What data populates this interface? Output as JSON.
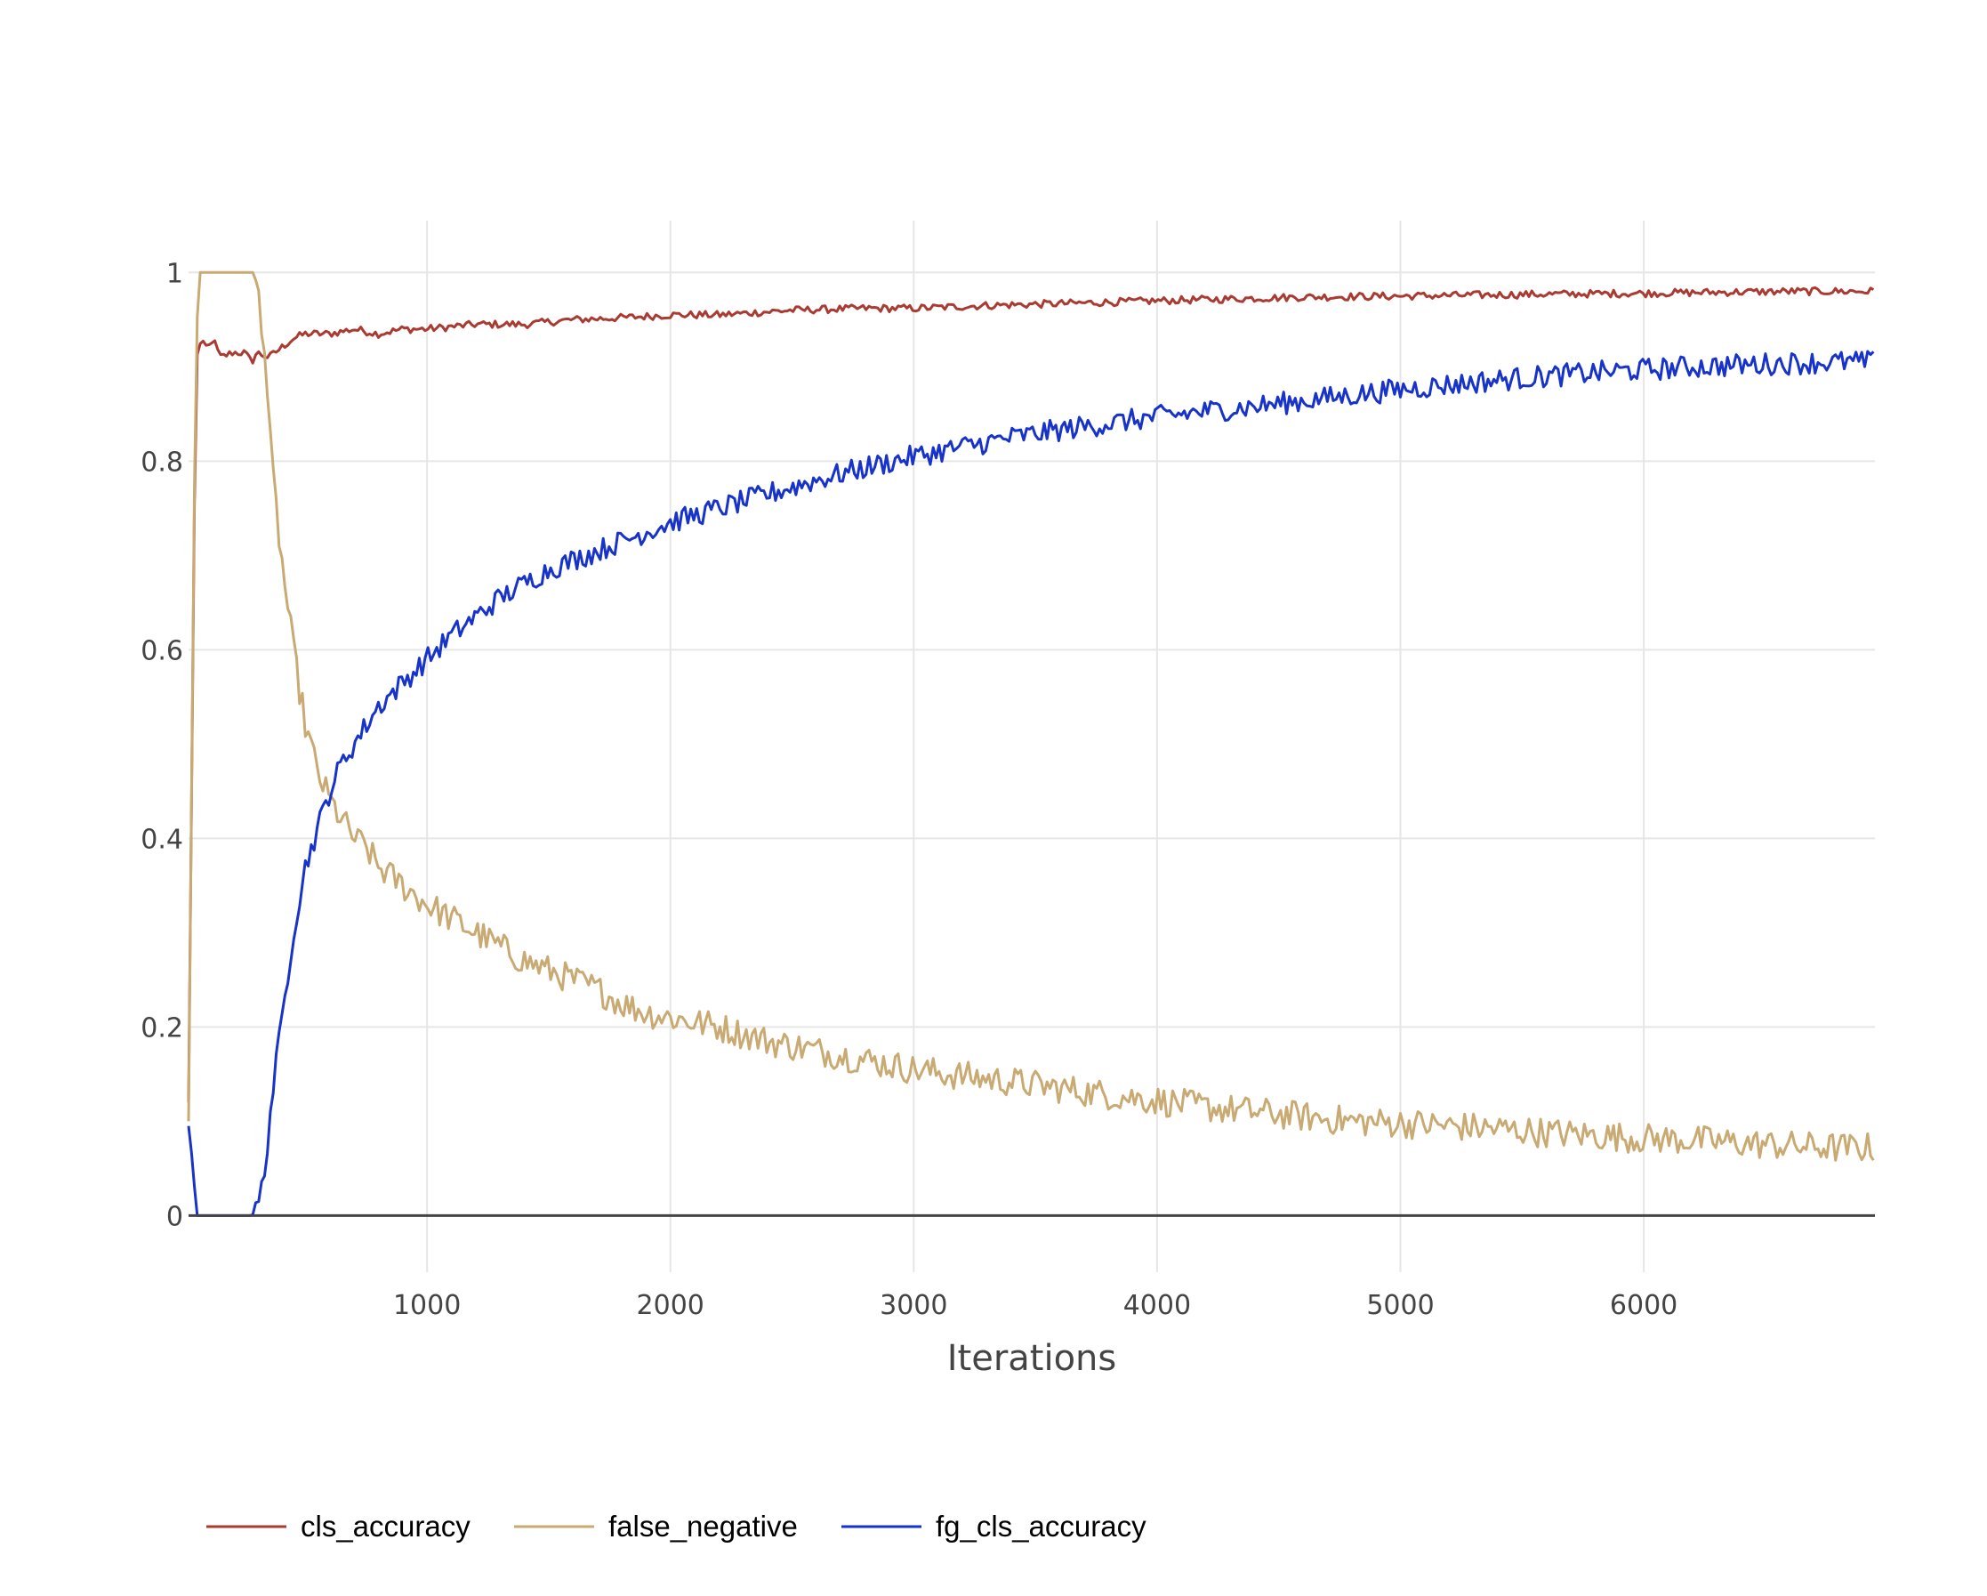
{
  "chart_data": {
    "type": "line",
    "title": "",
    "xlabel": "Iterations",
    "ylabel": "",
    "xlim": [
      20,
      6950
    ],
    "ylim": [
      -0.06,
      1.055
    ],
    "xticks": [
      1000,
      2000,
      3000,
      4000,
      5000,
      6000
    ],
    "xtick_labels": [
      "1000",
      "2000",
      "3000",
      "4000",
      "5000",
      "6000"
    ],
    "yticks": [
      0,
      0.2,
      0.4,
      0.6,
      0.8,
      1
    ],
    "ytick_labels": [
      "0",
      "0.2",
      "0.4",
      "0.6",
      "0.8",
      "1"
    ],
    "grid": true,
    "legend_position": "bottom-left",
    "series": [
      {
        "name": "cls_accuracy",
        "color": "#a93b32",
        "points": [
          [
            20,
            0.12
          ],
          [
            50,
            0.91
          ],
          [
            70,
            0.925
          ],
          [
            100,
            0.92
          ],
          [
            120,
            0.93
          ],
          [
            150,
            0.91
          ],
          [
            200,
            0.915
          ],
          [
            250,
            0.915
          ],
          [
            280,
            0.905
          ],
          [
            300,
            0.915
          ],
          [
            350,
            0.91
          ],
          [
            400,
            0.92
          ],
          [
            450,
            0.93
          ],
          [
            500,
            0.935
          ],
          [
            600,
            0.935
          ],
          [
            700,
            0.94
          ],
          [
            800,
            0.935
          ],
          [
            900,
            0.94
          ],
          [
            1000,
            0.94
          ],
          [
            1200,
            0.945
          ],
          [
            1400,
            0.945
          ],
          [
            1600,
            0.95
          ],
          [
            1800,
            0.952
          ],
          [
            2000,
            0.955
          ],
          [
            2200,
            0.955
          ],
          [
            2500,
            0.96
          ],
          [
            2800,
            0.962
          ],
          [
            3000,
            0.962
          ],
          [
            3300,
            0.965
          ],
          [
            3600,
            0.967
          ],
          [
            4000,
            0.97
          ],
          [
            4300,
            0.972
          ],
          [
            4600,
            0.974
          ],
          [
            5000,
            0.975
          ],
          [
            5300,
            0.976
          ],
          [
            5600,
            0.977
          ],
          [
            6000,
            0.978
          ],
          [
            6300,
            0.979
          ],
          [
            6600,
            0.98
          ],
          [
            6950,
            0.98
          ]
        ],
        "noise": 0.004
      },
      {
        "name": "false_negative",
        "color": "#c8aa72",
        "points": [
          [
            20,
            0.1
          ],
          [
            50,
            0.95
          ],
          [
            70,
            1.0
          ],
          [
            100,
            1.0
          ],
          [
            150,
            1.0
          ],
          [
            200,
            1.0
          ],
          [
            250,
            1.0
          ],
          [
            280,
            1.0
          ],
          [
            300,
            0.99
          ],
          [
            330,
            0.93
          ],
          [
            360,
            0.8
          ],
          [
            400,
            0.7
          ],
          [
            450,
            0.6
          ],
          [
            500,
            0.52
          ],
          [
            550,
            0.47
          ],
          [
            600,
            0.44
          ],
          [
            650,
            0.42
          ],
          [
            700,
            0.4
          ],
          [
            750,
            0.39
          ],
          [
            800,
            0.37
          ],
          [
            900,
            0.35
          ],
          [
            1000,
            0.33
          ],
          [
            1100,
            0.315
          ],
          [
            1200,
            0.3
          ],
          [
            1300,
            0.285
          ],
          [
            1400,
            0.27
          ],
          [
            1500,
            0.26
          ],
          [
            1600,
            0.25
          ],
          [
            1700,
            0.24
          ],
          [
            1800,
            0.225
          ],
          [
            1900,
            0.215
          ],
          [
            2000,
            0.21
          ],
          [
            2200,
            0.2
          ],
          [
            2400,
            0.185
          ],
          [
            2600,
            0.175
          ],
          [
            2800,
            0.165
          ],
          [
            3000,
            0.155
          ],
          [
            3200,
            0.148
          ],
          [
            3400,
            0.142
          ],
          [
            3600,
            0.135
          ],
          [
            3800,
            0.128
          ],
          [
            4000,
            0.122
          ],
          [
            4200,
            0.115
          ],
          [
            4400,
            0.11
          ],
          [
            4600,
            0.105
          ],
          [
            4800,
            0.1
          ],
          [
            5000,
            0.098
          ],
          [
            5200,
            0.095
          ],
          [
            5400,
            0.092
          ],
          [
            5600,
            0.088
          ],
          [
            5800,
            0.085
          ],
          [
            6000,
            0.082
          ],
          [
            6200,
            0.08
          ],
          [
            6400,
            0.077
          ],
          [
            6600,
            0.074
          ],
          [
            6800,
            0.072
          ],
          [
            6950,
            0.072
          ]
        ],
        "noise": 0.016
      },
      {
        "name": "fg_cls_accuracy",
        "color": "#1733c9",
        "points": [
          [
            20,
            0.095
          ],
          [
            35,
            0.06
          ],
          [
            50,
            0.01
          ],
          [
            70,
            0.0
          ],
          [
            100,
            0.0
          ],
          [
            150,
            0.0
          ],
          [
            200,
            0.0
          ],
          [
            280,
            0.0
          ],
          [
            300,
            0.005
          ],
          [
            330,
            0.04
          ],
          [
            360,
            0.12
          ],
          [
            400,
            0.2
          ],
          [
            450,
            0.3
          ],
          [
            500,
            0.37
          ],
          [
            550,
            0.41
          ],
          [
            600,
            0.45
          ],
          [
            650,
            0.48
          ],
          [
            700,
            0.5
          ],
          [
            750,
            0.52
          ],
          [
            800,
            0.54
          ],
          [
            900,
            0.565
          ],
          [
            1000,
            0.59
          ],
          [
            1100,
            0.615
          ],
          [
            1200,
            0.635
          ],
          [
            1300,
            0.655
          ],
          [
            1400,
            0.67
          ],
          [
            1500,
            0.685
          ],
          [
            1600,
            0.695
          ],
          [
            1700,
            0.705
          ],
          [
            1800,
            0.715
          ],
          [
            1900,
            0.725
          ],
          [
            2000,
            0.735
          ],
          [
            2200,
            0.75
          ],
          [
            2400,
            0.765
          ],
          [
            2600,
            0.78
          ],
          [
            2800,
            0.793
          ],
          [
            3000,
            0.805
          ],
          [
            3200,
            0.815
          ],
          [
            3400,
            0.825
          ],
          [
            3600,
            0.833
          ],
          [
            3800,
            0.84
          ],
          [
            4000,
            0.847
          ],
          [
            4200,
            0.853
          ],
          [
            4400,
            0.858
          ],
          [
            4600,
            0.864
          ],
          [
            4800,
            0.87
          ],
          [
            5000,
            0.876
          ],
          [
            5200,
            0.881
          ],
          [
            5400,
            0.886
          ],
          [
            5600,
            0.89
          ],
          [
            5800,
            0.894
          ],
          [
            6000,
            0.897
          ],
          [
            6200,
            0.9
          ],
          [
            6400,
            0.902
          ],
          [
            6600,
            0.904
          ],
          [
            6800,
            0.905
          ],
          [
            6950,
            0.905
          ]
        ],
        "noise": 0.012
      }
    ]
  }
}
